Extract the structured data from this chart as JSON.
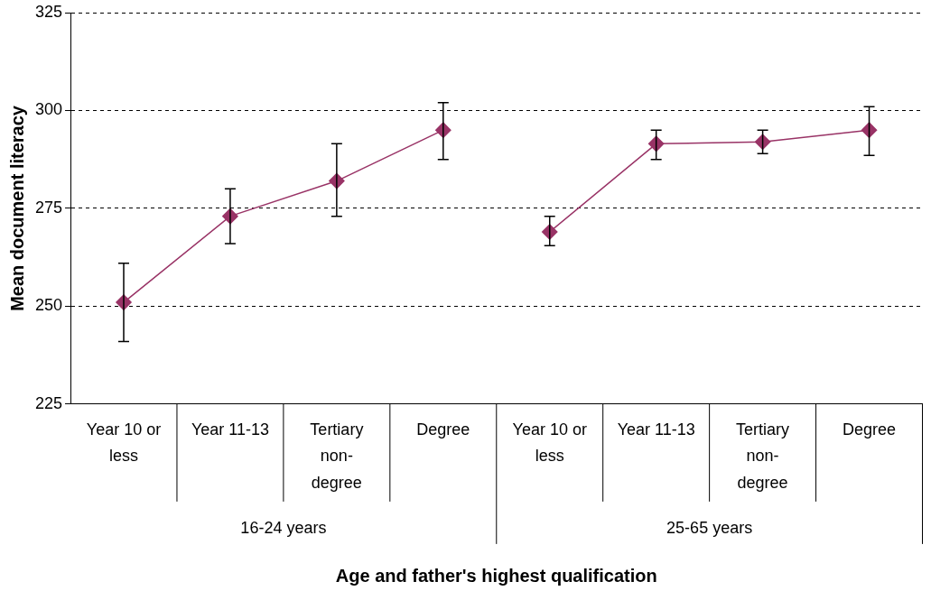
{
  "chart_data": {
    "type": "line",
    "xlabel": "Age and father's highest qualification",
    "ylabel": "Mean document literacy",
    "categories": [
      "Year 10 or less",
      "Year 11-13",
      "Tertiary non-degree",
      "Degree",
      "Year 10 or less",
      "Year 11-13",
      "Tertiary non-degree",
      "Degree"
    ],
    "series": [
      {
        "color": "#993366",
        "values": [
          251,
          273,
          282,
          295,
          null,
          null,
          null,
          null
        ],
        "errors": [
          [
            241,
            261
          ],
          [
            266,
            280
          ],
          [
            273,
            291.5
          ],
          [
            287.5,
            302
          ],
          null,
          null,
          null,
          null
        ]
      },
      {
        "color": "#993366",
        "values": [
          null,
          null,
          null,
          null,
          269,
          291.5,
          292,
          295
        ],
        "errors": [
          null,
          null,
          null,
          null,
          [
            265.5,
            273
          ],
          [
            287.5,
            295
          ],
          [
            289,
            295
          ],
          [
            288.5,
            301
          ]
        ]
      }
    ],
    "annotations": [
      "16-24 years",
      "25-65 years"
    ],
    "ylim": [
      225,
      325
    ],
    "yticks": [
      225,
      250,
      275,
      300,
      325
    ],
    "grid": "y",
    "legend": false,
    "marker": "diamond",
    "line_style": "solid"
  }
}
